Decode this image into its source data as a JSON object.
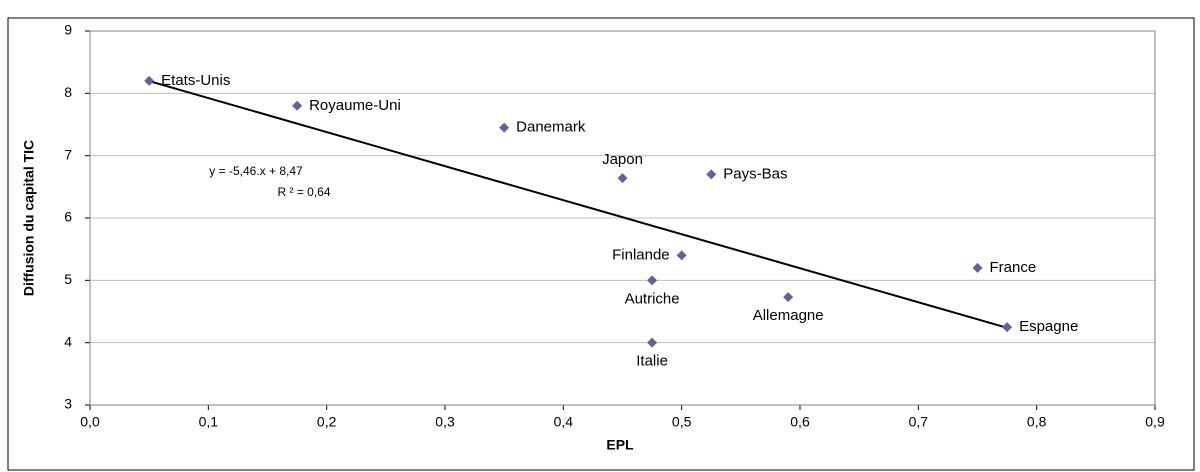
{
  "chart_data": {
    "type": "scatter",
    "x_label": "EPL",
    "y_label": "Diffusion du capital TIC",
    "series": [
      {
        "color": "#5f6399",
        "labels": [
          "Etats-Unis",
          "Royaume-Uni",
          "Danemark",
          "Japon",
          "Pays-Bas",
          "Finlande",
          "Autriche",
          "France",
          "Allemagne",
          "Espagne",
          "Italie"
        ],
        "x": [
          0.05,
          0.175,
          0.35,
          0.45,
          0.525,
          0.5,
          0.475,
          0.75,
          0.59,
          0.775,
          0.475
        ],
        "values": [
          8.2,
          7.8,
          7.45,
          6.64,
          6.7,
          5.4,
          5.0,
          5.2,
          4.73,
          4.25,
          4.0
        ]
      }
    ],
    "trendline": {
      "slope": -5.46,
      "intercept": 8.47,
      "equation_label": "y = -5,46.x + 8,47",
      "r2_label": "R ² = 0,64"
    },
    "xlim": [
      0,
      0.9
    ],
    "xticks": [
      {
        "value": 0,
        "label": "0,0"
      },
      {
        "value": 0.1,
        "label": "0,1"
      },
      {
        "value": 0.2,
        "label": "0,2"
      },
      {
        "value": 0.3,
        "label": "0,3"
      },
      {
        "value": 0.4,
        "label": "0,4"
      },
      {
        "value": 0.5,
        "label": "0,5"
      },
      {
        "value": 0.6,
        "label": "0,6"
      },
      {
        "value": 0.7,
        "label": "0,7"
      },
      {
        "value": 0.8,
        "label": "0,8"
      },
      {
        "value": 0.9,
        "label": "0,9"
      }
    ],
    "ylim": [
      3,
      9
    ],
    "yticks": [
      3,
      4,
      5,
      6,
      7,
      8,
      9
    ],
    "grid": true
  }
}
